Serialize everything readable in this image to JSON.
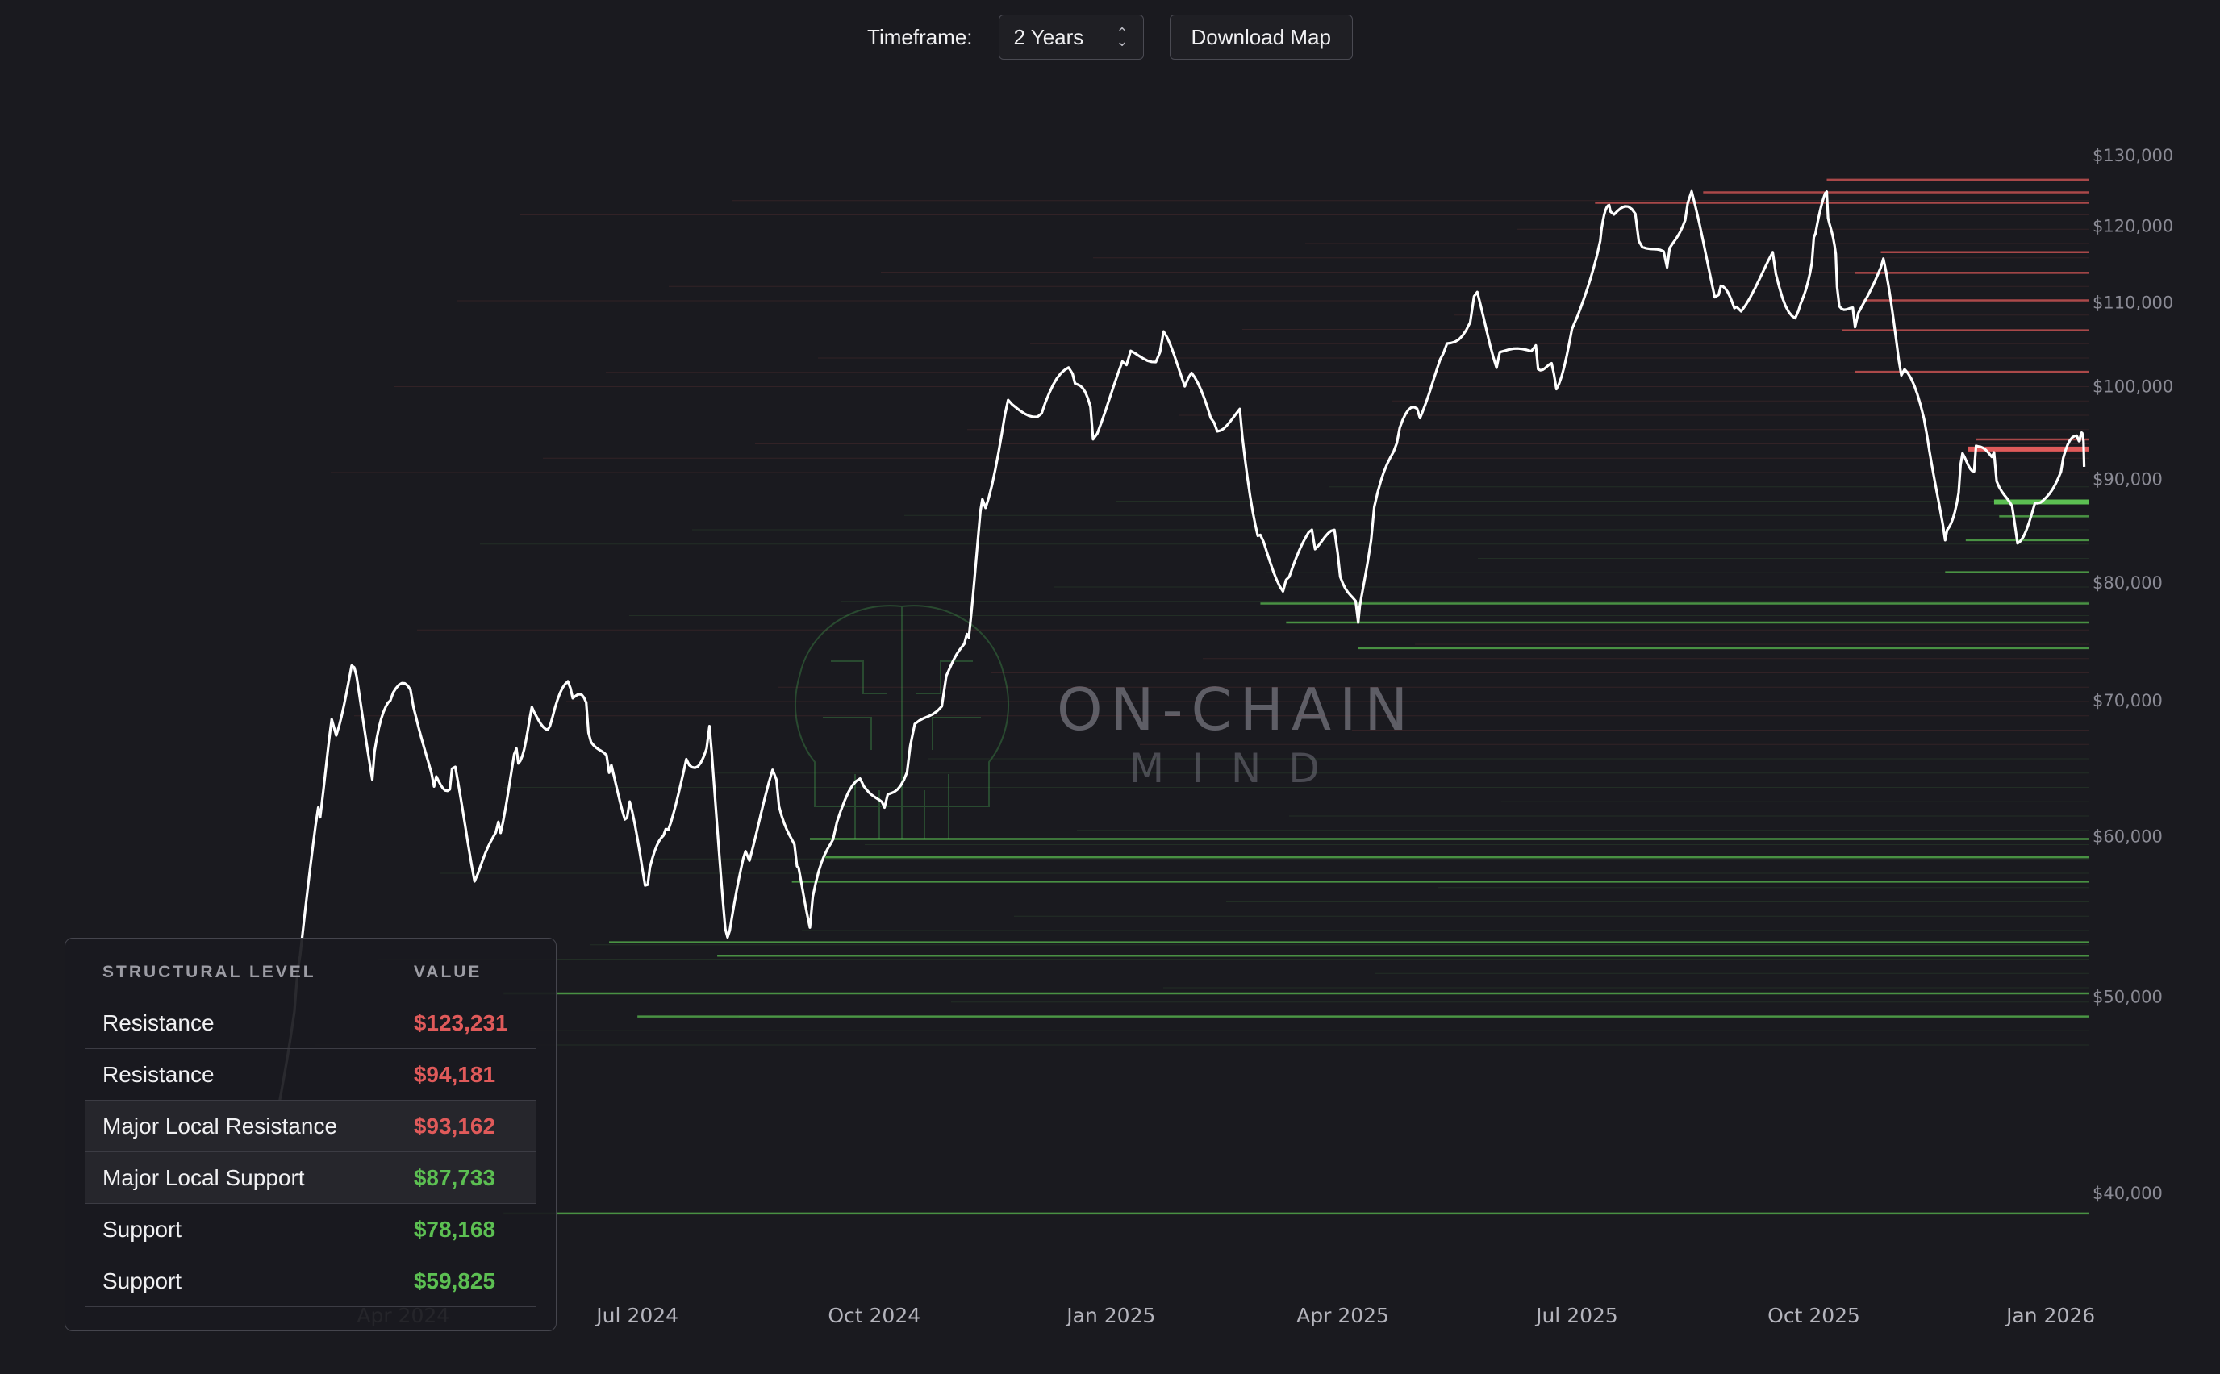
{
  "toolbar": {
    "timeframe_label": "Timeframe:",
    "timeframe_value": "2 Years",
    "download_label": "Download Map"
  },
  "watermark": {
    "title": "ON-CHAIN",
    "subtitle": "MIND"
  },
  "colors": {
    "background": "#1a1a1f",
    "price_line": "#ffffff",
    "resistance": "#e05a5a",
    "support": "#5cbf52",
    "axis_text": "#8a8a94"
  },
  "chart_data": {
    "type": "line",
    "title": "",
    "xlabel": "",
    "ylabel": "",
    "y_scale": "log",
    "ylim": [
      36500,
      134000
    ],
    "grid": false,
    "x_ticks": [
      "Apr 2024",
      "Jul 2024",
      "Oct 2024",
      "Jan 2025",
      "Apr 2025",
      "Jul 2025",
      "Oct 2025",
      "Jan 2026"
    ],
    "y_ticks": [
      {
        "label": "$130,000",
        "value": 130000
      },
      {
        "label": "$120,000",
        "value": 120000
      },
      {
        "label": "$110,000",
        "value": 110000
      },
      {
        "label": "$100,000",
        "value": 100000
      },
      {
        "label": "$90,000",
        "value": 90000
      },
      {
        "label": "$80,000",
        "value": 80000
      },
      {
        "label": "$70,000",
        "value": 70000
      },
      {
        "label": "$60,000",
        "value": 60000
      },
      {
        "label": "$50,000",
        "value": 50000
      },
      {
        "label": "$40,000",
        "value": 40000
      }
    ],
    "series": [
      {
        "x": [
          "2024-01-30",
          "2024-02-10",
          "2024-02-20",
          "2024-02-28",
          "2024-03-05",
          "2024-03-13",
          "2024-03-20",
          "2024-03-27",
          "2024-04-05",
          "2024-04-13",
          "2024-04-20",
          "2024-04-30",
          "2024-05-08",
          "2024-05-15",
          "2024-05-21",
          "2024-05-28",
          "2024-06-05",
          "2024-06-12",
          "2024-06-20",
          "2024-06-27",
          "2024-07-05",
          "2024-07-12",
          "2024-07-20",
          "2024-07-29",
          "2024-08-05",
          "2024-08-12",
          "2024-08-24",
          "2024-09-01",
          "2024-09-06",
          "2024-09-15",
          "2024-09-27",
          "2024-10-05",
          "2024-10-15",
          "2024-10-29",
          "2024-11-06",
          "2024-11-12",
          "2024-11-22",
          "2024-12-05",
          "2024-12-17",
          "2024-12-25",
          "2025-01-07",
          "2025-01-20",
          "2025-01-31",
          "2025-02-10",
          "2025-02-20",
          "2025-02-28",
          "2025-03-10",
          "2025-03-20",
          "2025-03-30",
          "2025-04-07",
          "2025-04-12",
          "2025-04-22",
          "2025-05-01",
          "2025-05-10",
          "2025-05-22",
          "2025-06-01",
          "2025-06-15",
          "2025-06-22",
          "2025-06-30",
          "2025-07-10",
          "2025-07-14",
          "2025-07-25",
          "2025-08-05",
          "2025-08-13",
          "2025-08-25",
          "2025-09-01",
          "2025-09-15",
          "2025-09-25",
          "2025-10-01",
          "2025-10-06",
          "2025-10-10",
          "2025-10-17",
          "2025-10-27",
          "2025-11-04",
          "2025-11-14",
          "2025-11-21",
          "2025-11-27",
          "2025-12-03",
          "2025-12-10",
          "2025-12-18",
          "2025-12-27",
          "2026-01-05",
          "2026-01-12",
          "2026-01-14"
        ],
        "y": [
          43000,
          42000,
          51500,
          62000,
          68000,
          72700,
          64000,
          70000,
          69500,
          63500,
          64800,
          57500,
          61000,
          66300,
          69500,
          68000,
          71000,
          67500,
          64500,
          61300,
          56800,
          60500,
          65500,
          68000,
          53500,
          59000,
          64000,
          58000,
          54100,
          59800,
          63500,
          62000,
          66500,
          72000,
          75500,
          88000,
          98500,
          97000,
          101500,
          94200,
          102500,
          104000,
          101000,
          96000,
          97500,
          84500,
          80300,
          85000,
          82800,
          76500,
          84000,
          93800,
          96500,
          103800,
          110800,
          104000,
          104800,
          101500,
          107500,
          118000,
          122000,
          118000,
          114500,
          123200,
          111000,
          109500,
          116500,
          109000,
          118500,
          124800,
          112000,
          107000,
          114500,
          101300,
          94500,
          84000,
          91500,
          93500,
          92800,
          85600,
          87600,
          90800,
          94000,
          91300
        ]
      }
    ],
    "levels": [
      {
        "price": 123231,
        "kind": "resistance",
        "from": "2025-07-08"
      },
      {
        "price": 126500,
        "kind": "resistance",
        "from": "2025-10-06"
      },
      {
        "price": 124700,
        "kind": "resistance",
        "from": "2025-08-19"
      },
      {
        "price": 116500,
        "kind": "resistance",
        "from": "2025-10-27"
      },
      {
        "price": 113800,
        "kind": "resistance",
        "from": "2025-10-17"
      },
      {
        "price": 110300,
        "kind": "resistance",
        "from": "2025-10-20"
      },
      {
        "price": 106600,
        "kind": "resistance",
        "from": "2025-10-12"
      },
      {
        "price": 101700,
        "kind": "resistance",
        "from": "2025-10-17"
      },
      {
        "price": 94181,
        "kind": "resistance",
        "from": "2025-12-03"
      },
      {
        "price": 93162,
        "kind": "major-resistance",
        "from": "2025-11-30"
      },
      {
        "price": 87733,
        "kind": "major-support",
        "from": "2025-12-10"
      },
      {
        "price": 86300,
        "kind": "support",
        "from": "2025-12-12"
      },
      {
        "price": 84000,
        "kind": "support",
        "from": "2025-11-29"
      },
      {
        "price": 81000,
        "kind": "support",
        "from": "2025-11-21"
      },
      {
        "price": 78168,
        "kind": "support",
        "from": "2025-02-28"
      },
      {
        "price": 76500,
        "kind": "support",
        "from": "2025-03-10"
      },
      {
        "price": 74300,
        "kind": "support",
        "from": "2025-04-07"
      },
      {
        "price": 59825,
        "kind": "support",
        "from": "2024-09-06"
      },
      {
        "price": 58600,
        "kind": "support",
        "from": "2024-09-12"
      },
      {
        "price": 57000,
        "kind": "support",
        "from": "2024-08-30"
      },
      {
        "price": 53200,
        "kind": "support",
        "from": "2024-06-20"
      },
      {
        "price": 52400,
        "kind": "support",
        "from": "2024-08-01"
      },
      {
        "price": 50200,
        "kind": "support",
        "from": "2024-05-10"
      },
      {
        "price": 48900,
        "kind": "support",
        "from": "2024-07-01"
      },
      {
        "price": 39100,
        "kind": "support",
        "from": "2024-05-10"
      }
    ]
  },
  "levels_table": {
    "headers": {
      "level": "STRUCTURAL LEVEL",
      "value": "VALUE"
    },
    "rows": [
      {
        "level": "Resistance",
        "value": "$123,231",
        "kind": "resistance"
      },
      {
        "level": "Resistance",
        "value": "$94,181",
        "kind": "resistance"
      },
      {
        "level": "Major Local Resistance",
        "value": "$93,162",
        "kind": "resistance"
      },
      {
        "level": "Major Local Support",
        "value": "$87,733",
        "kind": "support"
      },
      {
        "level": "Support",
        "value": "$78,168",
        "kind": "support"
      },
      {
        "level": "Support",
        "value": "$59,825",
        "kind": "support"
      }
    ]
  }
}
